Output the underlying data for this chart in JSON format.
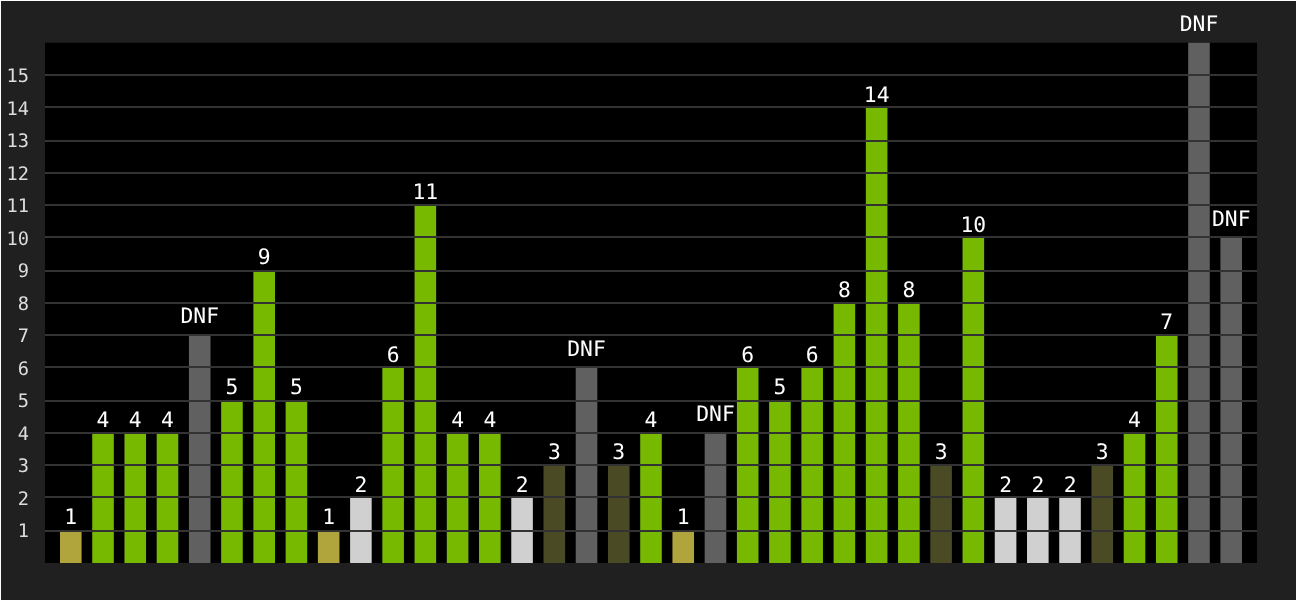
{
  "chart_data": {
    "type": "bar",
    "categories": [
      null,
      null,
      null,
      null,
      null,
      null,
      null,
      null,
      null,
      null,
      null,
      null,
      null,
      null,
      null,
      null,
      null,
      null,
      null,
      null,
      null,
      null,
      null,
      null,
      null,
      null,
      null,
      null,
      null,
      null,
      null,
      null,
      null,
      null,
      null,
      null,
      null
    ],
    "values": [
      1,
      4,
      4,
      4,
      7,
      5,
      9,
      5,
      1,
      2,
      6,
      11,
      4,
      4,
      2,
      3,
      6,
      3,
      4,
      1,
      4,
      6,
      5,
      6,
      8,
      14,
      8,
      3,
      10,
      2,
      2,
      2,
      3,
      4,
      7,
      16,
      10
    ],
    "value_labels": [
      "1",
      "4",
      "4",
      "4",
      "DNF",
      "5",
      "9",
      "5",
      "1",
      "2",
      "6",
      "11",
      "4",
      "4",
      "2",
      "3",
      "DNF",
      "3",
      "4",
      "1",
      "DNF",
      "6",
      "5",
      "6",
      "8",
      "14",
      "8",
      "3",
      "10",
      "2",
      "2",
      "2",
      "3",
      "4",
      "7",
      "DNF",
      "DNF"
    ],
    "colors": [
      "#b0a53c",
      "#76b900",
      "#76b900",
      "#76b900",
      "#606060",
      "#76b900",
      "#76b900",
      "#76b900",
      "#b0a53c",
      "#d0d0d0",
      "#76b900",
      "#76b900",
      "#76b900",
      "#76b900",
      "#d0d0d0",
      "#4a4a24",
      "#606060",
      "#4a4a24",
      "#76b900",
      "#b0a53c",
      "#606060",
      "#76b900",
      "#76b900",
      "#76b900",
      "#76b900",
      "#76b900",
      "#76b900",
      "#4a4a24",
      "#76b900",
      "#d0d0d0",
      "#d0d0d0",
      "#d0d0d0",
      "#4a4a24",
      "#76b900",
      "#76b900",
      "#606060",
      "#606060"
    ],
    "ylim": [
      0,
      16
    ],
    "yticks": [
      1,
      2,
      3,
      4,
      5,
      6,
      7,
      8,
      9,
      10,
      11,
      12,
      13,
      14,
      15
    ],
    "grid": "y",
    "tick_labels": "y"
  }
}
